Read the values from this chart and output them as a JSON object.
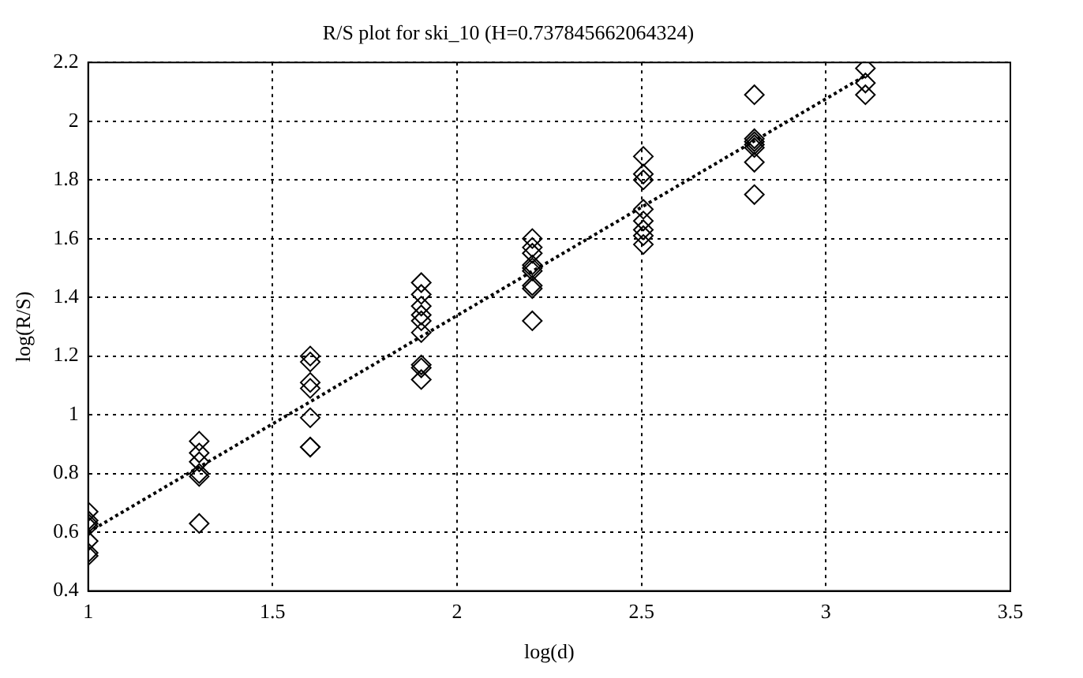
{
  "chart_data": {
    "type": "scatter",
    "title": "R/S plot for ski_10 (H=0.737845662064324)",
    "xlabel": "log(d)",
    "ylabel": "log(R/S)",
    "xlim": [
      1,
      3.5
    ],
    "xticks": [
      1,
      1.5,
      2,
      2.5,
      3,
      3.5
    ],
    "ylim": [
      0.4,
      2.2
    ],
    "yticks": [
      0.4,
      0.6,
      0.8,
      1,
      1.2,
      1.4,
      1.6,
      1.8,
      2,
      2.2
    ],
    "grid": true,
    "legend": false,
    "marker": "diamond",
    "series": [
      {
        "color": "#000000",
        "x": [
          1,
          1,
          1,
          1,
          1,
          1,
          1,
          1.301,
          1.301,
          1.301,
          1.301,
          1.301,
          1.301,
          1.602,
          1.602,
          1.602,
          1.602,
          1.602,
          1.602,
          1.602,
          1.903,
          1.903,
          1.903,
          1.903,
          1.903,
          1.903,
          1.903,
          1.903,
          1.903,
          2.204,
          2.204,
          2.204,
          2.204,
          2.204,
          2.204,
          2.204,
          2.204,
          2.204,
          2.505,
          2.505,
          2.505,
          2.505,
          2.505,
          2.505,
          2.505,
          2.505,
          2.806,
          2.806,
          2.806,
          2.806,
          2.806,
          2.806,
          2.806,
          3.107,
          3.107,
          3.107
        ],
        "values": [
          0.67,
          0.64,
          0.62,
          0.63,
          0.57,
          0.53,
          0.52,
          0.91,
          0.87,
          0.84,
          0.8,
          0.79,
          0.63,
          1.2,
          1.18,
          1.11,
          1.09,
          0.99,
          0.89,
          0.89,
          1.45,
          1.41,
          1.37,
          1.34,
          1.32,
          1.28,
          1.17,
          1.16,
          1.12,
          1.6,
          1.57,
          1.55,
          1.51,
          1.5,
          1.49,
          1.44,
          1.43,
          1.32,
          1.88,
          1.82,
          1.8,
          1.7,
          1.66,
          1.63,
          1.61,
          1.58,
          2.09,
          1.94,
          1.93,
          1.92,
          1.91,
          1.86,
          1.75,
          2.18,
          2.13,
          2.09
        ]
      },
      {
        "type": "line",
        "color": "#000000",
        "marker": "none",
        "line_style": "dotted",
        "x": [
          1,
          3.107
        ],
        "values": [
          0.6,
          2.155
        ]
      }
    ]
  }
}
